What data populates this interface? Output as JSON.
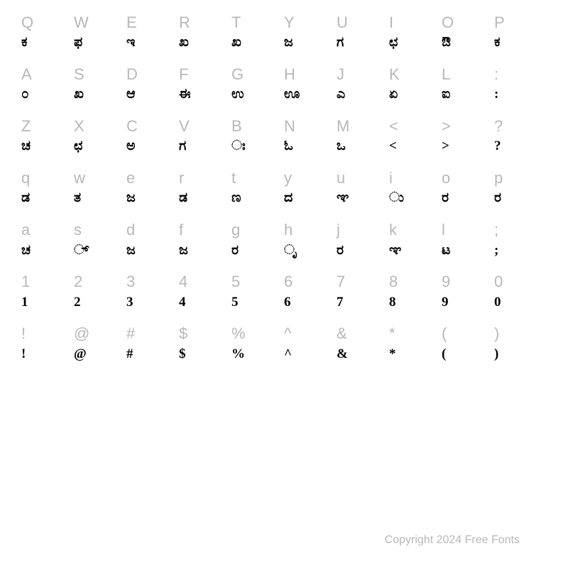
{
  "chart": {
    "type": "table",
    "columns": 10,
    "background_color": "#ffffff",
    "key_label_color": "#b8b8b8",
    "key_label_fontsize": 22,
    "glyph_color": "#000000",
    "glyph_fontsize": 19,
    "rows": [
      {
        "keys": [
          "Q",
          "W",
          "E",
          "R",
          "T",
          "Y",
          "U",
          "I",
          "O",
          "P"
        ],
        "glyphs": [
          "ಕ",
          "ಫ",
          "ಇ",
          "ಖ",
          "ಖ",
          "ಜ",
          "ಗ",
          "ಛ",
          "ಔ",
          "ಕ"
        ]
      },
      {
        "keys": [
          "A",
          "S",
          "D",
          "F",
          "G",
          "H",
          "J",
          "K",
          "L",
          ":"
        ],
        "glyphs": [
          "೦",
          "ಖ",
          "ಆ",
          "ಈ",
          "ಉ",
          "ಊ",
          "ಎ",
          "ಏ",
          "ಐ",
          ":"
        ]
      },
      {
        "keys": [
          "Z",
          "X",
          "C",
          "V",
          "B",
          "N",
          "M",
          "<",
          ">",
          "?"
        ],
        "glyphs": [
          "ಚ",
          "ಛ",
          "ಅ",
          "ಗ",
          "ಃ",
          "ಓ",
          "ಒ",
          "<",
          ">",
          "?"
        ]
      },
      {
        "keys": [
          "q",
          "w",
          "e",
          "r",
          "t",
          "y",
          "u",
          "i",
          "o",
          "p"
        ],
        "glyphs": [
          "ಡ",
          "ತ",
          "ಜ",
          "ಡ",
          "ಣ",
          "ದ",
          "ಞ",
          "ು",
          "ರ",
          "ರ"
        ]
      },
      {
        "keys": [
          "a",
          "s",
          "d",
          "f",
          "g",
          "h",
          "j",
          "k",
          "l",
          ";"
        ],
        "glyphs": [
          "ಚ",
          "್",
          "ಜ",
          "ಜ",
          "ರ",
          "ೃ",
          "ರ",
          "ಞ",
          "ಟ",
          ";"
        ]
      },
      {
        "keys": [
          "1",
          "2",
          "3",
          "4",
          "5",
          "6",
          "7",
          "8",
          "9",
          "0"
        ],
        "glyphs": [
          "1",
          "2",
          "3",
          "4",
          "5",
          "6",
          "7",
          "8",
          "9",
          "0"
        ]
      },
      {
        "keys": [
          "!",
          "@",
          "#",
          "$",
          "%",
          "^",
          "&",
          "*",
          "(",
          ")"
        ],
        "glyphs": [
          "!",
          "@",
          "#",
          "$",
          "%",
          "^",
          "&",
          "*",
          "(",
          ")"
        ]
      }
    ]
  },
  "footer": {
    "text": "Copyright 2024 Free Fonts",
    "color": "#b8b8b8",
    "fontsize": 16
  }
}
